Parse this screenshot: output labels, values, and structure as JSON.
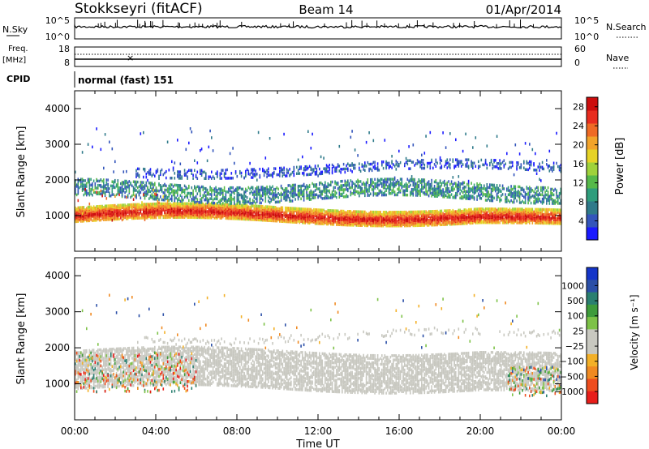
{
  "header": {
    "station": "Stokkseyri (fitACF)",
    "beam": "Beam 14",
    "date": "01/Apr/2014"
  },
  "strips": {
    "nsky_label": "N.Sky",
    "nsky_ticks": [
      "10^5",
      "10^0"
    ],
    "nsearch_label": "N.Search",
    "nsearch_ticks": [
      "10^5",
      "10^0"
    ],
    "freq_label": "Freq.",
    "freq_unit": "[MHz]",
    "freq_ticks": [
      "18",
      "8"
    ],
    "nave_label": "Nave",
    "nave_ticks": [
      "60",
      "0"
    ],
    "cpid_label": "CPID",
    "cpid_value": "normal (fast) 151"
  },
  "panels": {
    "ylabel": "Slant Range [km]",
    "power_label": "Power [dB]",
    "velocity_label": "Velocity [m s⁻¹]"
  },
  "xlabel": "Time UT",
  "colors": {
    "power": [
      "#1a1aff",
      "#3355bb",
      "#2f7a8a",
      "#2e9d7c",
      "#56b94a",
      "#9fd23b",
      "#e6d327",
      "#f2a32a",
      "#ef6a25",
      "#e82c1f",
      "#cc0d0d"
    ],
    "velocity": [
      "#e81e1a",
      "#ee4d1e",
      "#f08a22",
      "#f3b027",
      "#c8c8c0",
      "#c8c8c0",
      "#7dc247",
      "#3e9b3b",
      "#2a7f70",
      "#2b4fa7",
      "#1535c9"
    ]
  },
  "chart_data": [
    {
      "type": "heatmap",
      "title": "Power",
      "x_ticks": [
        "00:00",
        "04:00",
        "08:00",
        "12:00",
        "16:00",
        "20:00",
        "00:00"
      ],
      "xlim_hours": [
        0,
        24
      ],
      "ylim": [
        0,
        4500
      ],
      "y_ticks": [
        1000,
        2000,
        3000,
        4000
      ],
      "colorbar_ticks": [
        4,
        8,
        12,
        16,
        20,
        24,
        28
      ],
      "colorbar_range": [
        0,
        30
      ],
      "features": [
        {
          "desc": "main echo band",
          "range_km": [
            900,
            1200
          ],
          "value_dB": 24
        },
        {
          "desc": "upper band",
          "range_km": [
            1500,
            1900
          ],
          "value_dB": 10
        },
        {
          "desc": "high range scatter",
          "range_km": [
            2100,
            3500
          ],
          "value_dB": 6
        }
      ]
    },
    {
      "type": "heatmap",
      "title": "Velocity",
      "x_ticks": [
        "00:00",
        "04:00",
        "08:00",
        "12:00",
        "16:00",
        "20:00",
        "00:00"
      ],
      "xlim_hours": [
        0,
        24
      ],
      "ylim": [
        0,
        4500
      ],
      "y_ticks": [
        1000,
        2000,
        3000,
        4000
      ],
      "colorbar_ticks": [
        "1000",
        "500",
        "100",
        "25",
        "−25",
        "−100",
        "−500",
        "−1000"
      ],
      "features": [
        {
          "desc": "ground scatter",
          "range_km": [
            1000,
            2000
          ],
          "value_ms": 0
        },
        {
          "desc": "early ionospheric echoes",
          "range_km": [
            800,
            1800
          ],
          "value_ms": -300
        },
        {
          "desc": "late ionospheric echoes",
          "range_km": [
            700,
            1500
          ],
          "value_ms": 200
        }
      ]
    }
  ]
}
